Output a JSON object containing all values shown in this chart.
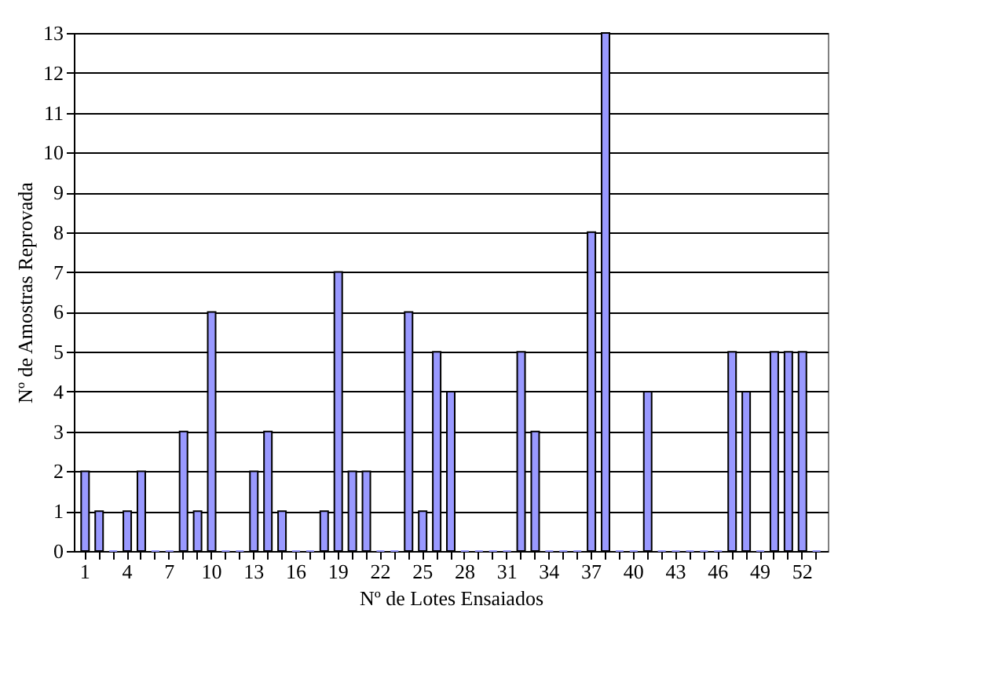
{
  "chart_data": {
    "type": "bar",
    "xlabel": "Nº de Lotes Ensaiados",
    "ylabel": "Nº de Amostras Reprovada",
    "categories": [
      "1",
      null,
      null,
      "4",
      null,
      null,
      "7",
      null,
      null,
      "10",
      null,
      null,
      "13",
      null,
      null,
      "16",
      null,
      null,
      "19",
      null,
      null,
      "22",
      null,
      null,
      "25",
      null,
      null,
      "28",
      null,
      null,
      "31",
      null,
      null,
      "34",
      null,
      null,
      "37",
      null,
      null,
      "40",
      null,
      null,
      "43",
      null,
      null,
      "46",
      null,
      null,
      "49",
      null,
      null,
      "52",
      null
    ],
    "values": [
      2,
      1,
      0,
      1,
      2,
      0,
      0,
      3,
      1,
      6,
      0,
      0,
      2,
      3,
      1,
      0,
      0,
      1,
      7,
      2,
      2,
      0,
      0,
      6,
      1,
      5,
      4,
      0,
      0,
      0,
      0,
      5,
      3,
      0,
      0,
      0,
      8,
      13,
      0,
      0,
      4,
      0,
      0,
      0,
      0,
      0,
      5,
      4,
      0,
      5,
      5,
      5,
      0
    ],
    "color": "#9999ff",
    "ylim": [
      0,
      13
    ],
    "yticks": [
      0,
      1,
      2,
      3,
      4,
      5,
      6,
      7,
      8,
      9,
      10,
      11,
      12,
      13
    ],
    "grid": "y"
  }
}
